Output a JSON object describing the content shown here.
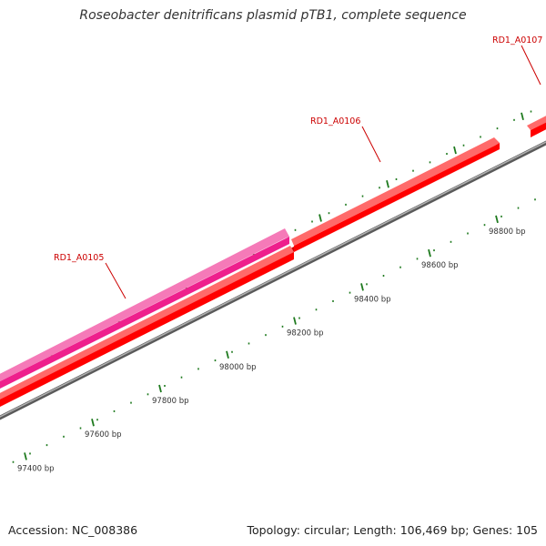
{
  "title": "Roseobacter denitrificans plasmid pTB1, complete sequence",
  "footer": {
    "accession": "Accession: NC_008386",
    "topology": "Topology: circular; Length: 106,469 bp; Genes: 105"
  },
  "colors": {
    "backbone": "#808080",
    "gene_red": "#ff0000",
    "gene_pink": "#ee1f8c",
    "label": "#cc0000",
    "tick": "#1e7a1e"
  },
  "genes": [
    {
      "name": "RD1_A0105",
      "color": "#ee1f8c"
    },
    {
      "name": "RD1_A0106",
      "color": "#ff0000"
    },
    {
      "name": "RD1_A0107",
      "color": "#ff0000"
    }
  ],
  "bp_labels": [
    "97400 bp",
    "97600 bp",
    "97800 bp",
    "98000 bp",
    "98200 bp",
    "98400 bp",
    "98600 bp",
    "98800 bp"
  ]
}
